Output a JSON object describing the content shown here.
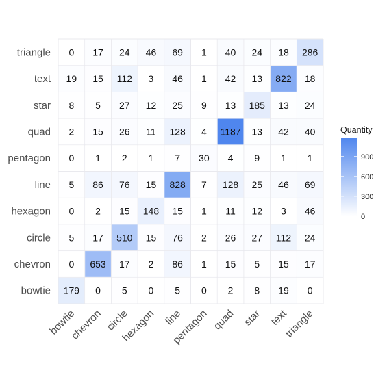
{
  "chart_data": {
    "type": "heatmap",
    "x_categories": [
      "bowtie",
      "chevron",
      "circle",
      "hexagon",
      "line",
      "pentagon",
      "quad",
      "star",
      "text",
      "triangle"
    ],
    "y_categories": [
      "bowtie",
      "chevron",
      "circle",
      "hexagon",
      "line",
      "pentagon",
      "quad",
      "star",
      "text",
      "triangle"
    ],
    "matrix": [
      [
        179,
        0,
        5,
        0,
        5,
        0,
        2,
        8,
        19,
        0
      ],
      [
        0,
        653,
        17,
        2,
        86,
        1,
        15,
        5,
        15,
        17
      ],
      [
        5,
        17,
        510,
        15,
        76,
        2,
        26,
        27,
        112,
        24
      ],
      [
        0,
        2,
        15,
        148,
        15,
        1,
        11,
        12,
        3,
        46
      ],
      [
        5,
        86,
        76,
        15,
        828,
        7,
        128,
        25,
        46,
        69
      ],
      [
        0,
        1,
        2,
        1,
        7,
        30,
        4,
        9,
        1,
        1
      ],
      [
        2,
        15,
        26,
        11,
        128,
        4,
        1187,
        13,
        42,
        40
      ],
      [
        8,
        5,
        27,
        12,
        25,
        9,
        13,
        185,
        13,
        24
      ],
      [
        19,
        15,
        112,
        3,
        46,
        1,
        42,
        13,
        822,
        18
      ],
      [
        0,
        17,
        24,
        46,
        69,
        1,
        40,
        24,
        18,
        286
      ]
    ],
    "title": "",
    "xlabel": "",
    "ylabel": "",
    "color_scale": {
      "low": "#ffffff",
      "high": "#4f86ee",
      "range": [
        0,
        1187
      ]
    },
    "legend": {
      "title": "Quantity",
      "ticks": [
        0,
        300,
        600,
        900
      ],
      "placement": "right"
    },
    "grid": true
  }
}
